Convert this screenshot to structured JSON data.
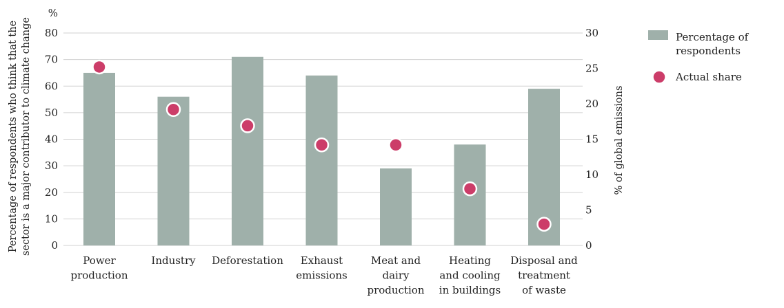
{
  "chart_data": {
    "type": "bar",
    "title": "",
    "categories": [
      [
        "Power",
        "production"
      ],
      [
        "Industry"
      ],
      [
        "Deforestation"
      ],
      [
        "Exhaust",
        "emissions"
      ],
      [
        "Meat and",
        "dairy",
        "production"
      ],
      [
        "Heating",
        "and cooling",
        "in buildings"
      ],
      [
        "Disposal and",
        "treatment",
        "of waste"
      ]
    ],
    "series": [
      {
        "name": "Percentage of respondents",
        "legend_lines": [
          "Percentage of",
          "respondents"
        ],
        "axis": "left",
        "mark": "bar",
        "color": "#9fb0aa",
        "values": [
          65,
          56,
          71,
          64,
          29,
          38,
          59
        ]
      },
      {
        "name": "Actual share",
        "legend_lines": [
          "Actual share"
        ],
        "axis": "right",
        "mark": "point",
        "color": "#cc3d69",
        "values": [
          25.2,
          19.2,
          16.9,
          14.2,
          14.2,
          8.0,
          3.0
        ]
      }
    ],
    "y_left": {
      "unit_label": "%",
      "label_lines": [
        "Percentage of respondents who think that the",
        "sector is a major contributor to climate change"
      ],
      "ylim": [
        0,
        80
      ],
      "ticks": [
        0,
        10,
        20,
        30,
        40,
        50,
        60,
        70,
        80
      ]
    },
    "y_right": {
      "label": "% of global emissions",
      "ylim": [
        0,
        30
      ],
      "ticks": [
        0,
        5,
        10,
        15,
        20,
        25,
        30
      ]
    },
    "grid": "horizontal",
    "legend_position": "right"
  }
}
